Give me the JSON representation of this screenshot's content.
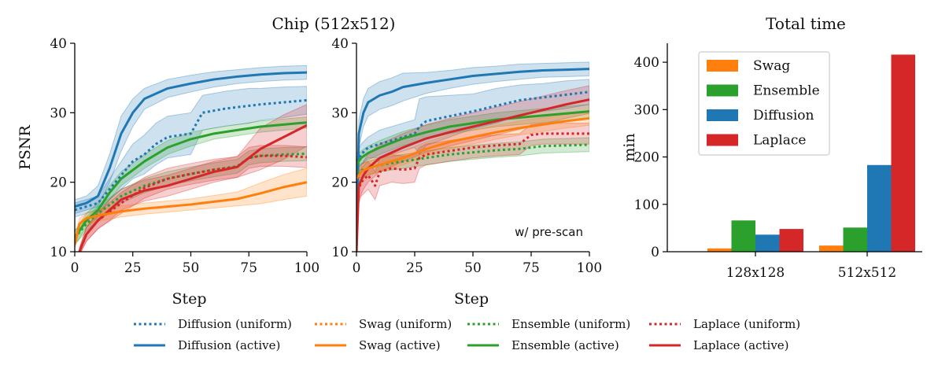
{
  "colors": {
    "Diffusion": "#1f77b4",
    "Swag": "#ff7f0e",
    "Ensemble": "#2ca02c",
    "Laplace": "#d62728"
  },
  "legend": {
    "entries": [
      {
        "method": "Diffusion",
        "style": "dotted",
        "label": "Diffusion (uniform)"
      },
      {
        "method": "Swag",
        "style": "dotted",
        "label": "Swag (uniform)"
      },
      {
        "method": "Ensemble",
        "style": "dotted",
        "label": "Ensemble (uniform)"
      },
      {
        "method": "Laplace",
        "style": "dotted",
        "label": "Laplace (uniform)"
      },
      {
        "method": "Diffusion",
        "style": "solid",
        "label": "Diffusion (active)"
      },
      {
        "method": "Swag",
        "style": "solid",
        "label": "Swag (active)"
      },
      {
        "method": "Ensemble",
        "style": "solid",
        "label": "Ensemble (active)"
      },
      {
        "method": "Laplace",
        "style": "solid",
        "label": "Laplace (active)"
      }
    ]
  },
  "chart_data": [
    {
      "type": "line",
      "title": "Chip (512x512)",
      "xlabel": "Step",
      "ylabel": "PSNR",
      "xlim": [
        0,
        100
      ],
      "ylim": [
        10,
        40
      ],
      "xticks": [
        0,
        25,
        50,
        75,
        100
      ],
      "yticks": [
        10,
        20,
        30,
        40
      ],
      "annotation": "",
      "series": [
        {
          "method": "Diffusion",
          "style": "solid",
          "x": [
            0,
            5,
            10,
            15,
            20,
            25,
            30,
            40,
            50,
            60,
            70,
            80,
            90,
            100
          ],
          "y": [
            16.5,
            17,
            18,
            22,
            27,
            30,
            32,
            33.5,
            34.2,
            34.8,
            35.2,
            35.5,
            35.7,
            35.8
          ],
          "band": [
            1.0,
            1.0,
            1.5,
            2.0,
            2.5,
            2.0,
            1.5,
            1.3,
            1.2,
            1.1,
            1.0,
            1.0,
            1.0,
            1.0
          ]
        },
        {
          "method": "Diffusion",
          "style": "dotted",
          "x": [
            0,
            5,
            10,
            15,
            20,
            25,
            30,
            35,
            40,
            50,
            55,
            60,
            65,
            70,
            75,
            80,
            90,
            100
          ],
          "y": [
            16,
            16.5,
            17,
            19,
            21,
            23,
            24,
            25.5,
            26.5,
            27,
            30,
            30.3,
            30.6,
            30.8,
            31,
            31.2,
            31.5,
            31.8
          ],
          "band": [
            1.0,
            1.0,
            1.0,
            1.5,
            2.0,
            2.5,
            2.8,
            3.0,
            3.0,
            3.0,
            2.5,
            2.5,
            2.5,
            2.5,
            2.5,
            2.3,
            2.2,
            2.0
          ]
        },
        {
          "method": "Ensemble",
          "style": "solid",
          "x": [
            0,
            5,
            10,
            15,
            20,
            30,
            40,
            50,
            60,
            70,
            80,
            90,
            100
          ],
          "y": [
            12,
            14.5,
            16,
            18.5,
            20.5,
            23,
            25,
            26.2,
            27,
            27.5,
            28,
            28.3,
            28.6
          ],
          "band": [
            1.0,
            1.0,
            1.0,
            1.0,
            1.0,
            1.0,
            1.0,
            1.0,
            0.8,
            0.8,
            0.8,
            0.8,
            0.8
          ]
        },
        {
          "method": "Ensemble",
          "style": "dotted",
          "x": [
            0,
            5,
            10,
            20,
            30,
            40,
            50,
            60,
            70,
            75,
            80,
            90,
            100
          ],
          "y": [
            12,
            14,
            15.5,
            18,
            19.5,
            20.5,
            21.2,
            21.8,
            22.3,
            23.5,
            23.8,
            24,
            24.1
          ],
          "band": [
            1.0,
            1.0,
            1.0,
            1.0,
            1.0,
            1.0,
            1.0,
            1.0,
            1.0,
            1.0,
            1.0,
            1.0,
            1.0
          ]
        },
        {
          "method": "Laplace",
          "style": "solid",
          "x": [
            2,
            5,
            10,
            15,
            20,
            30,
            40,
            50,
            60,
            70,
            80,
            90,
            100
          ],
          "y": [
            10,
            12.5,
            14.5,
            16,
            17.5,
            18.8,
            19.5,
            20.5,
            21.5,
            22.2,
            24.8,
            26.5,
            28.2
          ],
          "band": [
            0.5,
            1.0,
            1.2,
            1.5,
            1.5,
            1.5,
            1.5,
            1.5,
            1.5,
            1.5,
            3.0,
            3.2,
            3.0
          ]
        },
        {
          "method": "Laplace",
          "style": "dotted",
          "x": [
            2,
            5,
            10,
            20,
            30,
            40,
            50,
            60,
            70,
            75,
            80,
            90,
            100
          ],
          "y": [
            10,
            12.5,
            14.5,
            17,
            19.2,
            20.5,
            21.2,
            21.8,
            22.2,
            23.5,
            23.8,
            23.8,
            23.6
          ],
          "band": [
            0.5,
            1.0,
            1.2,
            1.5,
            1.5,
            1.5,
            1.5,
            1.5,
            1.5,
            1.5,
            1.5,
            1.5,
            1.5
          ]
        },
        {
          "method": "Swag",
          "style": "solid",
          "x": [
            0,
            2,
            5,
            10,
            20,
            30,
            40,
            50,
            60,
            70,
            80,
            90,
            100
          ],
          "y": [
            11,
            14,
            14.8,
            15.2,
            15.8,
            16.2,
            16.5,
            16.8,
            17.2,
            17.6,
            18.4,
            19.3,
            20
          ],
          "band": [
            0.5,
            0.8,
            0.8,
            0.8,
            0.8,
            0.8,
            0.8,
            0.8,
            0.9,
            1.0,
            1.5,
            1.8,
            2.0
          ]
        }
      ]
    },
    {
      "type": "line",
      "title": "",
      "xlabel": "Step",
      "ylabel": "",
      "xlim": [
        0,
        100
      ],
      "ylim": [
        10,
        40
      ],
      "xticks": [
        0,
        25,
        50,
        75,
        100
      ],
      "yticks": [
        10,
        20,
        30,
        40
      ],
      "annotation": "w/ pre-scan",
      "series": [
        {
          "method": "Diffusion",
          "style": "solid",
          "x": [
            0,
            1,
            3,
            5,
            10,
            15,
            20,
            30,
            40,
            50,
            60,
            70,
            80,
            90,
            100
          ],
          "y": [
            10,
            27,
            30,
            31.5,
            32.5,
            33,
            33.7,
            34.3,
            34.8,
            35.3,
            35.6,
            35.9,
            36.1,
            36.2,
            36.3
          ],
          "band": [
            0.5,
            2.0,
            2.0,
            2.0,
            2.0,
            2.0,
            2.0,
            1.5,
            1.3,
            1.2,
            1.1,
            1.1,
            1.0,
            1.0,
            1.0
          ]
        },
        {
          "method": "Diffusion",
          "style": "dotted",
          "x": [
            0,
            2,
            5,
            10,
            15,
            20,
            25,
            27,
            30,
            40,
            50,
            60,
            70,
            80,
            90,
            100
          ],
          "y": [
            23,
            24,
            25,
            25.5,
            26,
            26.5,
            27,
            28,
            28.8,
            29.5,
            30.2,
            31,
            31.8,
            32.2,
            32.6,
            33
          ],
          "band": [
            1.0,
            1.5,
            1.5,
            2.0,
            2.0,
            2.0,
            2.0,
            4.0,
            3.5,
            3.0,
            2.5,
            2.5,
            2.2,
            2.0,
            2.0,
            1.8
          ]
        },
        {
          "method": "Ensemble",
          "style": "solid",
          "x": [
            0,
            2,
            5,
            10,
            20,
            30,
            40,
            50,
            60,
            70,
            80,
            90,
            100
          ],
          "y": [
            22.5,
            23.5,
            24.2,
            25,
            26.3,
            27.2,
            28,
            28.5,
            29,
            29.3,
            29.6,
            29.9,
            30.2
          ],
          "band": [
            1.0,
            1.0,
            1.0,
            1.0,
            1.0,
            1.0,
            1.0,
            1.0,
            1.0,
            1.0,
            1.0,
            1.0,
            1.0
          ]
        },
        {
          "method": "Ensemble",
          "style": "dotted",
          "x": [
            0,
            5,
            10,
            20,
            30,
            40,
            50,
            60,
            70,
            75,
            80,
            90,
            100
          ],
          "y": [
            21.5,
            22,
            22.5,
            23,
            23.5,
            24,
            24.3,
            24.6,
            24.8,
            25,
            25.2,
            25.3,
            25.4
          ],
          "band": [
            1.0,
            1.0,
            1.0,
            1.0,
            1.0,
            1.0,
            1.0,
            1.0,
            1.0,
            1.0,
            1.0,
            1.0,
            1.0
          ]
        },
        {
          "method": "Laplace",
          "style": "solid",
          "x": [
            0,
            1,
            3,
            5,
            10,
            20,
            30,
            40,
            50,
            60,
            70,
            80,
            90,
            100
          ],
          "y": [
            10,
            19.5,
            21,
            22,
            23.5,
            25,
            26.3,
            27.2,
            28,
            28.8,
            29.6,
            30.4,
            31.2,
            31.9
          ],
          "band": [
            0.5,
            2.0,
            2.0,
            2.0,
            2.0,
            2.0,
            2.0,
            2.0,
            2.0,
            2.0,
            2.0,
            2.0,
            2.0,
            2.0
          ]
        },
        {
          "method": "Laplace",
          "style": "dotted",
          "x": [
            0,
            2,
            5,
            8,
            10,
            15,
            20,
            25,
            27,
            30,
            40,
            50,
            60,
            70,
            75,
            80,
            90,
            100
          ],
          "y": [
            18,
            20,
            21,
            19.5,
            21.5,
            22,
            21.8,
            22,
            23.5,
            24,
            24.5,
            25,
            25.3,
            25.5,
            26.8,
            27,
            27,
            27
          ],
          "band": [
            2.0,
            2.0,
            2.0,
            2.0,
            2.0,
            2.0,
            2.0,
            2.0,
            1.5,
            1.5,
            1.5,
            1.5,
            1.5,
            1.5,
            1.5,
            1.5,
            1.5,
            1.5
          ]
        },
        {
          "method": "Swag",
          "style": "solid",
          "x": [
            0,
            2,
            5,
            10,
            20,
            30,
            40,
            50,
            60,
            70,
            80,
            90,
            100
          ],
          "y": [
            20.5,
            21.5,
            22,
            22.5,
            23.5,
            24.8,
            25.8,
            26.5,
            27.2,
            27.8,
            28.3,
            28.8,
            29.2
          ],
          "band": [
            1.0,
            1.0,
            1.0,
            1.0,
            1.0,
            1.0,
            1.0,
            1.0,
            1.0,
            1.0,
            1.0,
            1.0,
            1.0
          ]
        }
      ]
    },
    {
      "type": "bar",
      "title": "Total time",
      "xlabel": "",
      "ylabel": "min",
      "categories": [
        "128x128",
        "512x512"
      ],
      "ylim": [
        0,
        440
      ],
      "yticks": [
        0,
        100,
        200,
        300,
        400
      ],
      "legend_position": "top-left",
      "series": [
        {
          "name": "Swag",
          "values": [
            7,
            13
          ]
        },
        {
          "name": "Ensemble",
          "values": [
            66,
            51
          ]
        },
        {
          "name": "Diffusion",
          "values": [
            36,
            183
          ]
        },
        {
          "name": "Laplace",
          "values": [
            48,
            416
          ]
        }
      ]
    }
  ]
}
